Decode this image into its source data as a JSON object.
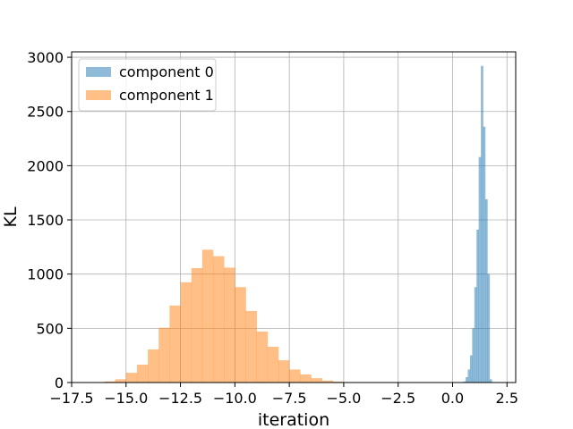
{
  "chart_data": {
    "type": "bar",
    "subtype": "histogram",
    "title": "",
    "xlabel": "iteration",
    "ylabel": "KL",
    "xlim": [
      -17.5,
      2.9
    ],
    "ylim": [
      0,
      3050
    ],
    "grid": true,
    "legend_position": "top-left",
    "x_ticks": [
      -17.5,
      -15.0,
      -12.5,
      -10.0,
      -7.5,
      -5.0,
      -2.5,
      0.0,
      2.5
    ],
    "x_tick_labels": [
      "−17.5",
      "−15.0",
      "−12.5",
      "−10.0",
      "−7.5",
      "−5.0",
      "−2.5",
      "0.0",
      "2.5"
    ],
    "y_ticks": [
      0,
      500,
      1000,
      1500,
      2000,
      2500,
      3000
    ],
    "y_tick_labels": [
      "0",
      "500",
      "1000",
      "1500",
      "2000",
      "2500",
      "3000"
    ],
    "series": [
      {
        "name": "component 0",
        "color": "#1f77b4",
        "opacity": 0.5,
        "bin_edges": [
          0.5,
          0.6,
          0.7,
          0.8,
          0.9,
          1.0,
          1.1,
          1.2,
          1.3,
          1.4,
          1.5,
          1.6,
          1.7,
          1.8,
          1.9,
          2.0
        ],
        "counts": [
          10,
          50,
          120,
          250,
          500,
          880,
          1410,
          2080,
          2920,
          2360,
          1690,
          1000,
          30,
          0,
          0
        ]
      },
      {
        "name": "component 1",
        "color": "#ff7f0e",
        "opacity": 0.5,
        "bin_edges": [
          -16.0,
          -15.5,
          -15.0,
          -14.5,
          -14.0,
          -13.5,
          -13.0,
          -12.5,
          -12.0,
          -11.5,
          -11.0,
          -10.5,
          -10.0,
          -9.5,
          -9.0,
          -8.5,
          -8.0,
          -7.5,
          -7.0,
          -6.5,
          -6.0,
          -5.5,
          -5.0,
          -4.5,
          -4.0
        ],
        "counts": [
          10,
          30,
          90,
          165,
          305,
          505,
          710,
          925,
          1055,
          1225,
          1165,
          1060,
          880,
          660,
          470,
          330,
          205,
          120,
          75,
          40,
          18,
          8,
          3,
          1
        ]
      }
    ]
  }
}
